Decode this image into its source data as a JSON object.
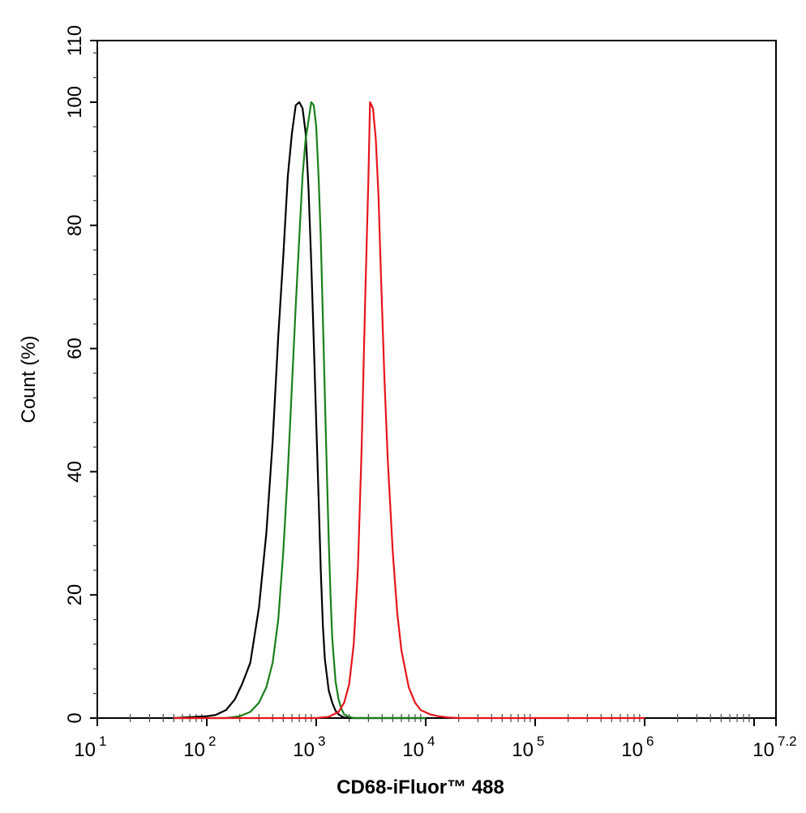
{
  "chart_data": {
    "type": "line",
    "xscale": "log10",
    "xlim": [
      10,
      15848931.92
    ],
    "ylim": [
      0,
      110
    ],
    "grid": false,
    "xlabel": "CD68-iFluor™ 488",
    "ylabel": "Count  (%)",
    "x_tick_labels": [
      {
        "base": "10",
        "exp": "1"
      },
      {
        "base": "10",
        "exp": "2"
      },
      {
        "base": "10",
        "exp": "3"
      },
      {
        "base": "10",
        "exp": "4"
      },
      {
        "base": "10",
        "exp": "5"
      },
      {
        "base": "10",
        "exp": "6"
      },
      {
        "base": "10",
        "exp": "7.2"
      }
    ],
    "y_ticks": [
      0,
      20,
      40,
      60,
      80,
      100,
      110
    ],
    "series": [
      {
        "color": "#000000",
        "x": [
          50,
          100,
          120,
          150,
          180,
          210,
          250,
          300,
          350,
          400,
          450,
          500,
          550,
          600,
          650,
          700,
          750,
          800,
          850,
          900,
          950,
          1000,
          1050,
          1100,
          1150,
          1200,
          1300,
          1400,
          1500,
          1600,
          1700,
          1800,
          2000,
          2200,
          10000
        ],
        "y": [
          0,
          0.3,
          0.5,
          1.3,
          3,
          5.5,
          9,
          18,
          30,
          45,
          62,
          75,
          88,
          95,
          99.5,
          100,
          99,
          95,
          86,
          74,
          61,
          48,
          36,
          24,
          15,
          9.5,
          4.5,
          2.5,
          1.2,
          0.6,
          0.3,
          0.1,
          0,
          0,
          0
        ]
      },
      {
        "color": "#1a7f1a",
        "x": [
          50,
          150,
          200,
          250,
          300,
          350,
          400,
          450,
          500,
          550,
          600,
          650,
          700,
          750,
          800,
          850,
          900,
          950,
          1000,
          1050,
          1100,
          1150,
          1200,
          1250,
          1300,
          1350,
          1400,
          1500,
          1600,
          1700,
          1800,
          2000,
          2200,
          10000
        ],
        "y": [
          0,
          0,
          0.3,
          1,
          2.5,
          5,
          9,
          16,
          27,
          40,
          54,
          67,
          78,
          88,
          94,
          97,
          100,
          99.5,
          96,
          88,
          78,
          65,
          52,
          40,
          29,
          20,
          13,
          6,
          3,
          1.5,
          0.6,
          0.2,
          0,
          0
        ]
      },
      {
        "color": "#e8141c",
        "x": [
          50,
          1000,
          1300,
          1600,
          1800,
          2000,
          2200,
          2400,
          2600,
          2800,
          3000,
          3100,
          3300,
          3500,
          3700,
          3900,
          4200,
          4500,
          5000,
          5500,
          6000,
          7000,
          8000,
          9000,
          11000,
          13000,
          16000,
          20000,
          1000000
        ],
        "y": [
          0,
          0,
          0.2,
          1,
          2.5,
          5.5,
          12,
          24,
          44,
          68,
          88,
          100,
          99,
          94,
          85,
          72,
          55,
          42,
          27,
          17,
          11,
          5,
          2.5,
          1.3,
          0.6,
          0.3,
          0.1,
          0,
          0
        ]
      }
    ]
  }
}
